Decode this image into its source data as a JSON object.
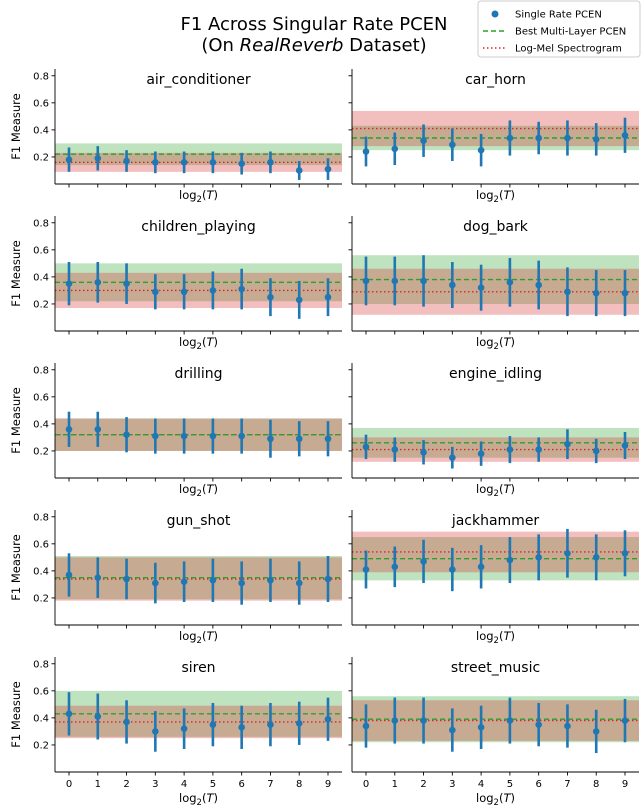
{
  "figure": {
    "title_line1": "F1 Across Singular Rate PCEN",
    "title_line2_prefix": "(On ",
    "title_line2_italic": "RealReverb",
    "title_line2_suffix": " Dataset)"
  },
  "legend": {
    "placement": "top-right",
    "entries": [
      {
        "label": "Single Rate PCEN",
        "color": "#1f77b4",
        "style": "marker"
      },
      {
        "label": "Best Multi-Layer PCEN",
        "color": "#2ca02c",
        "style": "dashed"
      },
      {
        "label": "Log-Mel Spectrogram",
        "color": "#d62728",
        "style": "dotted"
      }
    ]
  },
  "chart_data": {
    "type": "scatter",
    "layout": "5x2 small multiples",
    "xlabel_base": "log",
    "xlabel_sub": "2",
    "xlabel_arg": "T",
    "ylabel": "F1 Measure",
    "x": [
      0,
      1,
      2,
      3,
      4,
      5,
      6,
      7,
      8,
      9
    ],
    "ylim": [
      0,
      0.85
    ],
    "yticks": [
      "0.2",
      "0.4",
      "0.6",
      "0.8"
    ],
    "yticks_values": [
      0.2,
      0.4,
      0.6,
      0.8
    ],
    "band_colors": {
      "multi": "#2ca02c",
      "logmel": "#d62728"
    },
    "point_color": "#1f77b4",
    "panels": [
      {
        "title": "air_conditioner",
        "y": [
          0.18,
          0.19,
          0.17,
          0.16,
          0.16,
          0.16,
          0.15,
          0.16,
          0.1,
          0.11
        ],
        "err": [
          0.09,
          0.09,
          0.08,
          0.08,
          0.08,
          0.08,
          0.08,
          0.08,
          0.07,
          0.08
        ],
        "multi": {
          "mean": 0.22,
          "std": 0.08
        },
        "logmel": {
          "mean": 0.16,
          "std": 0.07
        }
      },
      {
        "title": "car_horn",
        "y": [
          0.24,
          0.26,
          0.32,
          0.29,
          0.25,
          0.34,
          0.34,
          0.34,
          0.33,
          0.36
        ],
        "err": [
          0.11,
          0.12,
          0.12,
          0.12,
          0.12,
          0.13,
          0.12,
          0.13,
          0.12,
          0.13
        ],
        "multi": {
          "mean": 0.34,
          "std": 0.09
        },
        "logmel": {
          "mean": 0.41,
          "std": 0.13
        }
      },
      {
        "title": "children_playing",
        "y": [
          0.35,
          0.36,
          0.35,
          0.29,
          0.29,
          0.3,
          0.31,
          0.25,
          0.23,
          0.25
        ],
        "err": [
          0.16,
          0.15,
          0.15,
          0.13,
          0.13,
          0.14,
          0.15,
          0.14,
          0.14,
          0.14
        ],
        "multi": {
          "mean": 0.36,
          "std": 0.14
        },
        "logmel": {
          "mean": 0.3,
          "std": 0.13
        }
      },
      {
        "title": "dog_bark",
        "y": [
          0.37,
          0.37,
          0.37,
          0.34,
          0.32,
          0.36,
          0.34,
          0.29,
          0.28,
          0.28
        ],
        "err": [
          0.18,
          0.18,
          0.19,
          0.17,
          0.17,
          0.18,
          0.18,
          0.18,
          0.17,
          0.17
        ],
        "multi": {
          "mean": 0.38,
          "std": 0.18
        },
        "logmel": {
          "mean": 0.29,
          "std": 0.17
        }
      },
      {
        "title": "drilling",
        "y": [
          0.36,
          0.36,
          0.32,
          0.31,
          0.31,
          0.31,
          0.31,
          0.29,
          0.29,
          0.29
        ],
        "err": [
          0.13,
          0.13,
          0.13,
          0.13,
          0.13,
          0.13,
          0.13,
          0.14,
          0.13,
          0.13
        ],
        "multi": {
          "mean": 0.32,
          "std": 0.12
        },
        "logmel": {
          "mean": 0.32,
          "std": 0.12
        }
      },
      {
        "title": "engine_idling",
        "y": [
          0.23,
          0.21,
          0.19,
          0.15,
          0.18,
          0.21,
          0.21,
          0.25,
          0.2,
          0.24
        ],
        "err": [
          0.09,
          0.09,
          0.09,
          0.08,
          0.09,
          0.1,
          0.09,
          0.11,
          0.09,
          0.1
        ],
        "multi": {
          "mean": 0.26,
          "std": 0.11
        },
        "logmel": {
          "mean": 0.21,
          "std": 0.09
        }
      },
      {
        "title": "gun_shot",
        "y": [
          0.37,
          0.35,
          0.34,
          0.31,
          0.32,
          0.33,
          0.31,
          0.33,
          0.31,
          0.34
        ],
        "err": [
          0.16,
          0.15,
          0.15,
          0.15,
          0.15,
          0.16,
          0.16,
          0.16,
          0.16,
          0.17
        ],
        "multi": {
          "mean": 0.35,
          "std": 0.16
        },
        "logmel": {
          "mean": 0.34,
          "std": 0.16
        }
      },
      {
        "title": "jackhammer",
        "y": [
          0.41,
          0.43,
          0.47,
          0.41,
          0.43,
          0.48,
          0.5,
          0.53,
          0.5,
          0.53
        ],
        "err": [
          0.14,
          0.15,
          0.16,
          0.16,
          0.16,
          0.17,
          0.17,
          0.18,
          0.17,
          0.17
        ],
        "multi": {
          "mean": 0.49,
          "std": 0.16
        },
        "logmel": {
          "mean": 0.54,
          "std": 0.15
        }
      },
      {
        "title": "siren",
        "y": [
          0.43,
          0.41,
          0.37,
          0.3,
          0.32,
          0.35,
          0.33,
          0.35,
          0.36,
          0.39
        ],
        "err": [
          0.16,
          0.17,
          0.16,
          0.15,
          0.15,
          0.16,
          0.16,
          0.16,
          0.16,
          0.16
        ],
        "multi": {
          "mean": 0.43,
          "std": 0.17
        },
        "logmel": {
          "mean": 0.37,
          "std": 0.12
        }
      },
      {
        "title": "street_music",
        "y": [
          0.34,
          0.38,
          0.38,
          0.31,
          0.33,
          0.38,
          0.35,
          0.34,
          0.3,
          0.38
        ],
        "err": [
          0.16,
          0.17,
          0.17,
          0.16,
          0.16,
          0.17,
          0.16,
          0.16,
          0.16,
          0.16
        ],
        "multi": {
          "mean": 0.39,
          "std": 0.17
        },
        "logmel": {
          "mean": 0.38,
          "std": 0.15
        }
      }
    ]
  }
}
